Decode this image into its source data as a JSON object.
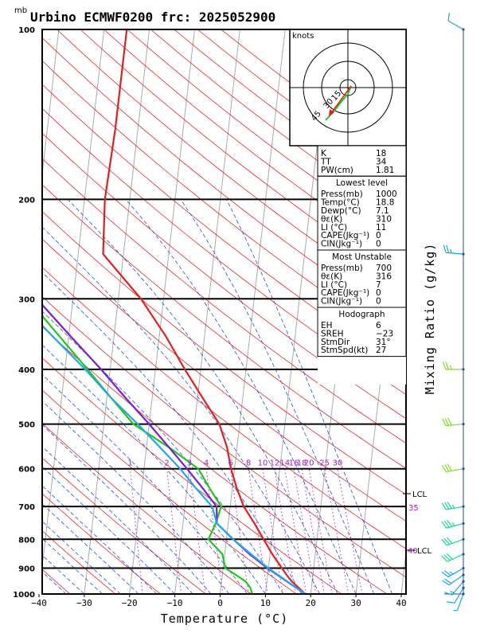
{
  "title": "Urbino ECMWF0200  frc: 2025052900",
  "pressure_unit": "mb",
  "xaxis_label": "Temperature (°C)",
  "right_axis_label": "Mixing Ratio (g/kg)",
  "hodograph": {
    "unit_label": "knots",
    "ring_labels": [
      "15",
      "30",
      "45"
    ]
  },
  "indices": {
    "top": [
      {
        "label": "K",
        "value": "18"
      },
      {
        "label": "TT",
        "value": "34"
      },
      {
        "label": "PW(cm)",
        "value": "1.81"
      }
    ],
    "lowest_level": {
      "header": "Lowest level",
      "rows": [
        {
          "label": "Press(mb)",
          "value": "1000"
        },
        {
          "label": "Temp(°C)",
          "value": "18.8"
        },
        {
          "label": "Dewp(°C)",
          "value": "7.1"
        },
        {
          "label": "θε(K)",
          "value": "310"
        },
        {
          "label": "LI (°C)",
          "value": "11"
        },
        {
          "label": "CAPE(Jkg⁻¹)",
          "value": "0"
        },
        {
          "label": "CIN(Jkg⁻¹)",
          "value": "0"
        }
      ]
    },
    "most_unstable": {
      "header": "Most Unstable",
      "rows": [
        {
          "label": "Press(mb)",
          "value": "700"
        },
        {
          "label": "θε(K)",
          "value": "316"
        },
        {
          "label": "LI (°C)",
          "value": "7"
        },
        {
          "label": "CAPE(Jkg⁻¹)",
          "value": "0"
        },
        {
          "label": "CIN(Jkg⁻¹)",
          "value": "0"
        }
      ]
    },
    "hodograph_box": {
      "header": "Hodograph",
      "rows": [
        {
          "label": "EH",
          "value": "6"
        },
        {
          "label": "SREH",
          "value": "−23"
        },
        {
          "label": "StmDir",
          "value": "31°"
        },
        {
          "label": "StmSpd(kt)",
          "value": "27"
        }
      ]
    }
  },
  "chart_data": {
    "type": "line",
    "title": "Urbino ECMWF0200  frc: 2025052900",
    "xlabel": "Temperature (°C)",
    "ylabel": "mb",
    "xlim": [
      -40,
      40
    ],
    "ylim": [
      1000,
      100
    ],
    "y_log_scale": true,
    "x_ticks": [
      "−40",
      "−30",
      "−20",
      "−10",
      "0",
      "10",
      "20",
      "30",
      "40"
    ],
    "pressure_ticks": [
      "100",
      "200",
      "300",
      "400",
      "500",
      "600",
      "700",
      "800",
      "900",
      "1000"
    ],
    "mixing_ratio_labels": [
      "1",
      "2",
      "3",
      "4",
      "6",
      "8",
      "10",
      "12",
      "14",
      "16",
      "18",
      "20",
      "25",
      "30"
    ],
    "side_labels": [
      "LCL",
      "35",
      "40",
      "LCL"
    ],
    "series": [
      {
        "name": "temperature",
        "color": "#e02020",
        "points": [
          [
            1000,
            18.8
          ],
          [
            975,
            17.2
          ],
          [
            950,
            15.5
          ],
          [
            925,
            14.2
          ],
          [
            900,
            13.0
          ],
          [
            850,
            10.5
          ],
          [
            800,
            8.2
          ],
          [
            750,
            5.8
          ],
          [
            700,
            3.0
          ],
          [
            650,
            1.0
          ],
          [
            600,
            -0.8
          ],
          [
            550,
            -2.2
          ],
          [
            500,
            -4.5
          ],
          [
            450,
            -8.8
          ],
          [
            400,
            -13.5
          ],
          [
            350,
            -18.5
          ],
          [
            300,
            -25.0
          ],
          [
            250,
            -34.5
          ],
          [
            200,
            -35.5
          ],
          [
            150,
            -35.0
          ],
          [
            100,
            -35.0
          ]
        ]
      },
      {
        "name": "dewpoint",
        "color": "#1ec81e",
        "points": [
          [
            1000,
            7.1
          ],
          [
            975,
            6.5
          ],
          [
            950,
            5.3
          ],
          [
            925,
            3.0
          ],
          [
            900,
            0.5
          ],
          [
            850,
            -0.5
          ],
          [
            800,
            -4.0
          ],
          [
            750,
            -2.8
          ],
          [
            700,
            -2.0
          ],
          [
            650,
            -5.0
          ],
          [
            600,
            -8.0
          ],
          [
            550,
            -15.0
          ],
          [
            500,
            -23.5
          ],
          [
            450,
            -29.0
          ],
          [
            400,
            -35.0
          ],
          [
            350,
            -42.0
          ],
          [
            300,
            -50.0
          ],
          [
            250,
            -58.0
          ],
          [
            200,
            -67.0
          ],
          [
            150,
            -76.0
          ],
          [
            100,
            -85.0
          ]
        ]
      },
      {
        "name": "virtual temperature parcel",
        "color": "#7a1fd0",
        "points": [
          [
            1000,
            18.8
          ],
          [
            900,
            9.8
          ],
          [
            850,
            5.5
          ],
          [
            800,
            1.5
          ],
          [
            750,
            -2.5
          ],
          [
            700,
            -3.0
          ],
          [
            650,
            -6.5
          ],
          [
            600,
            -10.5
          ],
          [
            550,
            -15.0
          ],
          [
            500,
            -20.0
          ],
          [
            450,
            -25.8
          ],
          [
            400,
            -32.0
          ],
          [
            350,
            -39.5
          ],
          [
            300,
            -48.0
          ],
          [
            250,
            -58.0
          ],
          [
            200,
            -69.5
          ],
          [
            150,
            -83.0
          ],
          [
            115,
            -95.0
          ]
        ]
      },
      {
        "name": "dry parcel",
        "color": "#20a8e8",
        "points": [
          [
            1000,
            18.8
          ],
          [
            950,
            14.5
          ],
          [
            900,
            10.0
          ],
          [
            850,
            5.8
          ],
          [
            800,
            1.5
          ],
          [
            750,
            -2.5
          ],
          [
            700,
            -4.0
          ],
          [
            650,
            -8.0
          ],
          [
            600,
            -12.0
          ],
          [
            550,
            -17.0
          ],
          [
            500,
            -22.5
          ],
          [
            450,
            -29.0
          ],
          [
            400,
            -35.5
          ],
          [
            350,
            -43.5
          ],
          [
            300,
            -52.5
          ],
          [
            250,
            -63.0
          ],
          [
            200,
            -75.5
          ],
          [
            150,
            -91.0
          ],
          [
            110,
            -108.0
          ]
        ]
      }
    ],
    "wind_barbs_kt": [
      {
        "p": 1000,
        "dir": 200,
        "spd": 5
      },
      {
        "p": 975,
        "dir": 210,
        "spd": 10
      },
      {
        "p": 950,
        "dir": 220,
        "spd": 15
      },
      {
        "p": 925,
        "dir": 235,
        "spd": 20
      },
      {
        "p": 900,
        "dir": 240,
        "spd": 25
      },
      {
        "p": 850,
        "dir": 245,
        "spd": 30
      },
      {
        "p": 800,
        "dir": 250,
        "spd": 30
      },
      {
        "p": 750,
        "dir": 255,
        "spd": 35
      },
      {
        "p": 700,
        "dir": 260,
        "spd": 35
      },
      {
        "p": 600,
        "dir": 260,
        "spd": 30
      },
      {
        "p": 500,
        "dir": 265,
        "spd": 30
      },
      {
        "p": 400,
        "dir": 270,
        "spd": 25
      },
      {
        "p": 250,
        "dir": 275,
        "spd": 25
      },
      {
        "p": 100,
        "dir": 300,
        "spd": 10
      }
    ]
  }
}
